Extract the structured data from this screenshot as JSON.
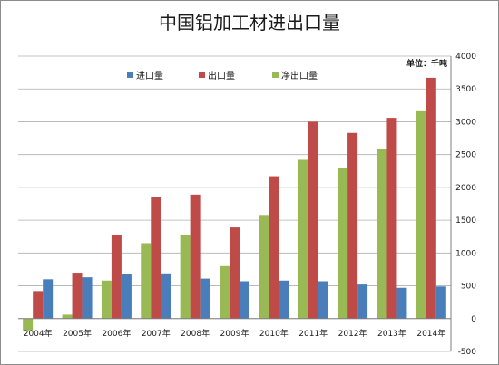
{
  "chart_data": {
    "type": "bar",
    "title": "中国铝加工材进出口量",
    "unit_label": "单位：千吨",
    "categories": [
      "2004年",
      "2005年",
      "2006年",
      "2007年",
      "2008年",
      "2009年",
      "2010年",
      "2011年",
      "2012年",
      "2013年",
      "2014年"
    ],
    "series": [
      {
        "name": "进口量",
        "color": "#4a7ebb",
        "values": [
          600,
          630,
          680,
          690,
          610,
          570,
          580,
          570,
          520,
          470,
          490
        ]
      },
      {
        "name": "出口量",
        "color": "#be4b48",
        "values": [
          420,
          700,
          1270,
          1850,
          1890,
          1390,
          2170,
          3000,
          2830,
          3060,
          3670
        ]
      },
      {
        "name": "净出口量",
        "color": "#98b954",
        "values": [
          -180,
          60,
          580,
          1150,
          1270,
          800,
          1580,
          2420,
          2300,
          2580,
          3160
        ]
      }
    ],
    "bar_order": [
      "净出口量",
      "出口量",
      "进口量"
    ],
    "ylim": [
      -500,
      4000
    ],
    "yticks": [
      -500,
      0,
      500,
      1000,
      1500,
      2000,
      2500,
      3000,
      3500,
      4000
    ],
    "y_axis_side": "right",
    "legend_position": "top-center",
    "grid": true
  }
}
